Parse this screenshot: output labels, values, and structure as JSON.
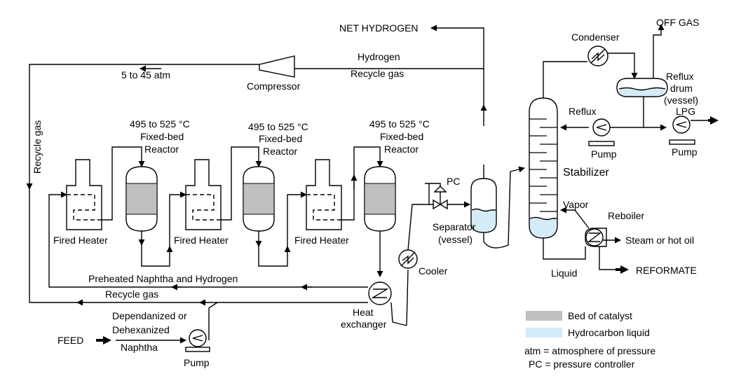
{
  "colors": {
    "catalyst": "#c0c0c0",
    "hydrocarbon_liquid": "#d4ecf8",
    "line": "#000000"
  },
  "labels": {
    "net_hydrogen": "NET HYDROGEN",
    "off_gas": "OFF GAS",
    "hydrogen": "Hydrogen",
    "recycle_gas_top": "Recycle gas",
    "pressure": "5 to 45 atm",
    "compressor": "Compressor",
    "recycle_gas_vertical": "Recycle gas",
    "reactor_temp": "495 to 525 °C",
    "reactor_type": "Fixed-bed",
    "reactor_name": "Reactor",
    "fired_heater": "Fired Heater",
    "preheated": "Preheated Naphtha and Hydrogen",
    "recycle_gas_bottom": "Recycle gas",
    "heat_exchanger_1": "Heat",
    "heat_exchanger_2": "exchanger",
    "feed": "FEED",
    "feed_desc_1": "Dependanized or",
    "feed_desc_2": "Dehexanized",
    "feed_desc_3": "Naphtha",
    "pump": "Pump",
    "cooler": "Cooler",
    "pc": "PC",
    "separator_1": "Separator",
    "separator_2": "(vessel)",
    "condenser": "Condenser",
    "reflux_drum_1": "Reflux",
    "reflux_drum_2": "drum",
    "reflux_drum_3": "(vessel)",
    "reflux": "Reflux",
    "lpg": "LPG",
    "stabilizer": "Stabilizer",
    "vapor": "Vapor",
    "reboiler": "Reboiler",
    "steam": "Steam or hot oil",
    "liquid": "Liquid",
    "reformate": "REFORMATE"
  },
  "legend": {
    "catalyst": "Bed of catalyst",
    "liquid": "Hydrocarbon liquid",
    "atm": "atm = atmosphere of pressure",
    "pc": "PC = pressure controller"
  }
}
